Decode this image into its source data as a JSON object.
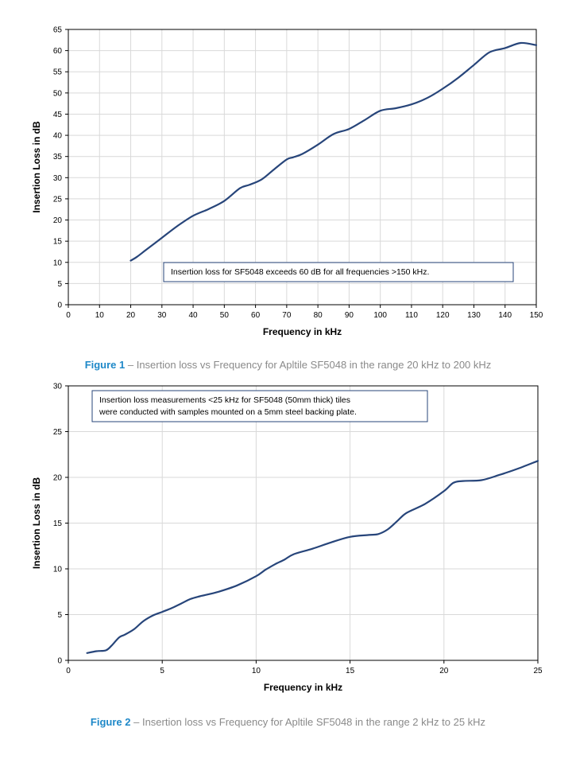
{
  "chart_data": [
    {
      "type": "line",
      "xlabel": "Frequency in kHz",
      "ylabel": "Insertion Loss in dB",
      "xlim": [
        0,
        150
      ],
      "ylim": [
        0,
        65
      ],
      "xticks": [
        "0",
        "10",
        "20",
        "30",
        "40",
        "50",
        "60",
        "70",
        "80",
        "90",
        "100",
        "110",
        "120",
        "130",
        "140",
        "150"
      ],
      "yticks": [
        "0",
        "5",
        "10",
        "15",
        "20",
        "25",
        "30",
        "35",
        "40",
        "45",
        "50",
        "55",
        "60",
        "65"
      ],
      "grid": true,
      "annotation": "Insertion loss for SF5048 exceeds 60 dB for all frequencies >150 kHz.",
      "colors": {
        "line": "#27457a",
        "grid": "#d9d9d9",
        "box": "#27457a"
      },
      "series": [
        {
          "x": [
            20,
            22,
            25,
            30,
            35,
            40,
            45,
            50,
            55,
            58,
            62,
            66,
            70,
            72,
            75,
            80,
            85,
            90,
            95,
            100,
            105,
            110,
            115,
            120,
            125,
            130,
            135,
            140,
            145,
            150
          ],
          "y": [
            10.4,
            11.3,
            13.0,
            15.8,
            18.6,
            21.0,
            22.6,
            24.5,
            27.5,
            28.3,
            29.6,
            32.0,
            34.3,
            34.8,
            35.6,
            37.8,
            40.3,
            41.5,
            43.6,
            45.8,
            46.4,
            47.3,
            48.8,
            51.0,
            53.6,
            56.6,
            59.6,
            60.6,
            61.8,
            61.3
          ]
        }
      ]
    },
    {
      "type": "line",
      "xlabel": "Frequency in kHz",
      "ylabel": "Insertion Loss in dB",
      "xlim": [
        0,
        25
      ],
      "ylim": [
        0,
        30
      ],
      "xticks": [
        "0",
        "5",
        "10",
        "15",
        "20",
        "25"
      ],
      "yticks": [
        "0",
        "5",
        "10",
        "15",
        "20",
        "25",
        "30"
      ],
      "grid": true,
      "annotation": [
        "Insertion loss measurements <25 kHz for SF5048 (50mm thick) tiles",
        "were conducted with samples mounted on a 5mm steel backing plate."
      ],
      "colors": {
        "line": "#27457a",
        "grid": "#d9d9d9",
        "box": "#27457a"
      },
      "series": [
        {
          "x": [
            1,
            1.5,
            2,
            2.3,
            2.7,
            3,
            3.5,
            4,
            4.5,
            5,
            5.5,
            6,
            6.5,
            7,
            8,
            9,
            10,
            10.5,
            11,
            11.5,
            12,
            13,
            14,
            15,
            16,
            16.5,
            17,
            17.5,
            18,
            19,
            20,
            20.5,
            21,
            22,
            23,
            24,
            25
          ],
          "y": [
            0.8,
            1.0,
            1.1,
            1.6,
            2.5,
            2.8,
            3.4,
            4.3,
            4.9,
            5.3,
            5.7,
            6.2,
            6.7,
            7.0,
            7.5,
            8.2,
            9.2,
            9.9,
            10.5,
            11.0,
            11.6,
            12.2,
            12.9,
            13.5,
            13.7,
            13.8,
            14.3,
            15.2,
            16.1,
            17.1,
            18.5,
            19.4,
            19.6,
            19.7,
            20.3,
            21.0,
            21.8
          ]
        }
      ]
    }
  ],
  "captions": [
    {
      "label": "Figure 1",
      "text": " – Insertion loss vs Frequency for Apltile SF5048 in the range 20 kHz to 200 kHz"
    },
    {
      "label": "Figure 2",
      "text": " – Insertion loss vs Frequency for Apltile SF5048 in the range 2 kHz to 25 kHz"
    }
  ]
}
